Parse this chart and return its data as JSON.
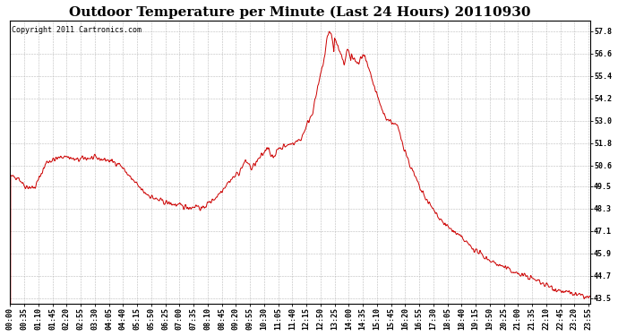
{
  "title": "Outdoor Temperature per Minute (Last 24 Hours) 20110930",
  "copyright_text": "Copyright 2011 Cartronics.com",
  "line_color": "#cc0000",
  "bg_color": "#ffffff",
  "grid_color": "#bbbbbb",
  "yticks": [
    43.5,
    44.7,
    45.9,
    47.1,
    48.3,
    49.5,
    50.6,
    51.8,
    53.0,
    54.2,
    55.4,
    56.6,
    57.8
  ],
  "ylim": [
    43.2,
    58.4
  ],
  "title_fontsize": 11,
  "copyright_fontsize": 6,
  "tick_fontsize": 6,
  "figwidth": 6.9,
  "figheight": 3.75,
  "dpi": 100
}
